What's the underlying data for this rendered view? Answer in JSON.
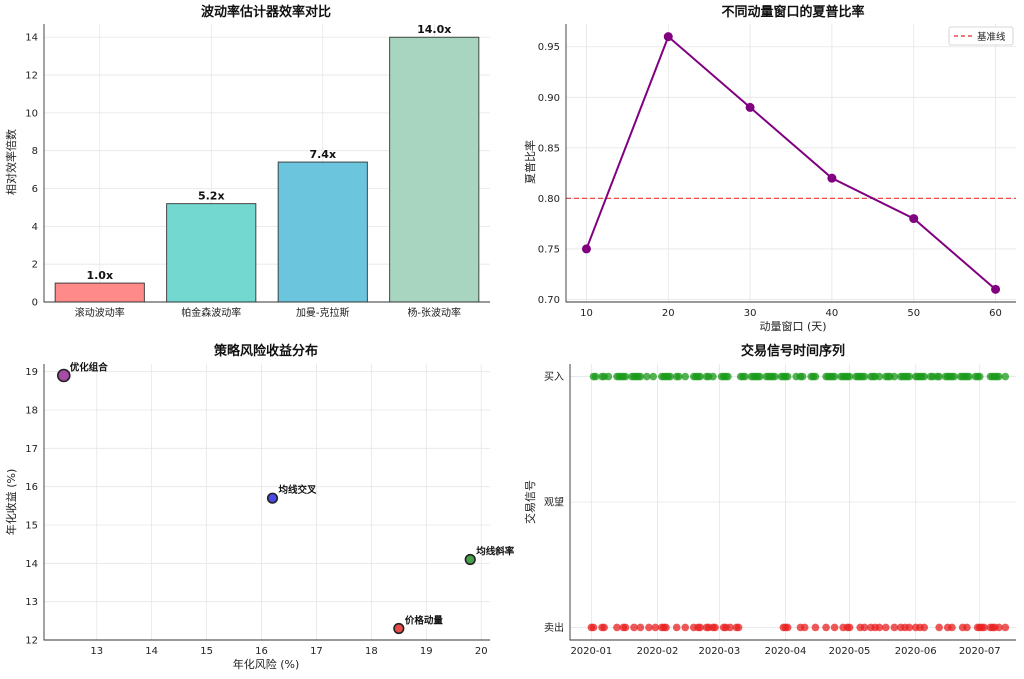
{
  "chart_data": [
    {
      "type": "bar",
      "title": "波动率估计器效率对比",
      "xlabel": "",
      "ylabel": "相对效率倍数",
      "categories": [
        "滚动波动率",
        "帕金森波动率",
        "加曼-克拉斯",
        "杨-张波动率"
      ],
      "values": [
        1.0,
        5.2,
        7.4,
        14.0
      ],
      "value_labels": [
        "1.0x",
        "5.2x",
        "7.4x",
        "14.0x"
      ],
      "colors": [
        "#ff8a8a",
        "#72d8d0",
        "#6bc5dc",
        "#a8d5c0"
      ],
      "ylim": [
        0,
        14.7
      ],
      "yticks": [
        0,
        2,
        4,
        6,
        8,
        10,
        12,
        14
      ],
      "grid": true
    },
    {
      "type": "line",
      "title": "不同动量窗口的夏普比率",
      "xlabel": "动量窗口 (天)",
      "ylabel": "夏普比率",
      "x": [
        10,
        20,
        30,
        40,
        50,
        60
      ],
      "series": [
        {
          "values": [
            0.75,
            0.96,
            0.89,
            0.82,
            0.78,
            0.71
          ],
          "color": "#800080"
        }
      ],
      "reference_line": {
        "name": "基准线",
        "value": 0.8,
        "color": "#e84a4a"
      },
      "xlim": [
        7.5,
        62.5
      ],
      "ylim": [
        0.6975,
        0.9725
      ],
      "xticks": [
        10,
        20,
        30,
        40,
        50,
        60
      ],
      "yticks": [
        0.7,
        0.75,
        0.8,
        0.85,
        0.9,
        0.95
      ],
      "legend": "top-right",
      "grid": true
    },
    {
      "type": "scatter",
      "title": "策略风险收益分布",
      "xlabel": "年化风险 (%)",
      "ylabel": "年化收益 (%)",
      "points": [
        {
          "label": "优化组合",
          "x": 12.4,
          "y": 18.9,
          "color": "#a64ca6"
        },
        {
          "label": "均线交叉",
          "x": 16.2,
          "y": 15.7,
          "color": "#4a4ae8"
        },
        {
          "label": "均线斜率",
          "x": 19.8,
          "y": 14.1,
          "color": "#4aa04a"
        },
        {
          "label": "价格动量",
          "x": 18.5,
          "y": 12.3,
          "color": "#e84a4a"
        }
      ],
      "xlim": [
        12.04,
        20.16
      ],
      "ylim": [
        12.0,
        19.2
      ],
      "xticks": [
        13,
        14,
        15,
        16,
        17,
        18,
        19,
        20
      ],
      "yticks": [
        12,
        13,
        14,
        15,
        16,
        17,
        18,
        19
      ],
      "grid": true
    },
    {
      "type": "scatter",
      "title": "交易信号时间序列",
      "xlabel": "",
      "ylabel": "交易信号",
      "x_axis": "date",
      "xlim": [
        "2019-12-22",
        "2020-07-18"
      ],
      "xticks": [
        "2020-01",
        "2020-02",
        "2020-03",
        "2020-04",
        "2020-05",
        "2020-06",
        "2020-07"
      ],
      "ylim": [
        -1.1,
        1.1
      ],
      "yticks": [
        {
          "value": -1,
          "label": "卖出"
        },
        {
          "value": 0,
          "label": "观望"
        },
        {
          "value": 1,
          "label": "买入"
        }
      ],
      "series": [
        {
          "signal": 1,
          "color": "#1a9a1a",
          "dates": [
            "2020-01-02",
            "2020-01-03",
            "2020-01-06",
            "2020-01-07",
            "2020-01-09",
            "2020-01-13",
            "2020-01-14",
            "2020-01-15",
            "2020-01-16",
            "2020-01-17",
            "2020-01-20",
            "2020-01-21",
            "2020-01-22",
            "2020-01-23",
            "2020-01-24",
            "2020-01-27",
            "2020-01-30",
            "2020-02-03",
            "2020-02-04",
            "2020-02-05",
            "2020-02-06",
            "2020-02-07",
            "2020-02-10",
            "2020-02-11",
            "2020-02-14",
            "2020-02-18",
            "2020-02-19",
            "2020-02-20",
            "2020-02-21",
            "2020-02-24",
            "2020-02-25",
            "2020-02-27",
            "2020-03-02",
            "2020-03-03",
            "2020-03-04",
            "2020-03-05",
            "2020-03-11",
            "2020-03-12",
            "2020-03-13",
            "2020-03-16",
            "2020-03-17",
            "2020-03-18",
            "2020-03-19",
            "2020-03-20",
            "2020-03-23",
            "2020-03-24",
            "2020-03-25",
            "2020-03-26",
            "2020-03-27",
            "2020-03-30",
            "2020-03-31",
            "2020-04-01",
            "2020-04-02",
            "2020-04-06",
            "2020-04-08",
            "2020-04-09",
            "2020-04-13",
            "2020-04-14",
            "2020-04-15",
            "2020-04-20",
            "2020-04-21",
            "2020-04-22",
            "2020-04-23",
            "2020-04-24",
            "2020-04-27",
            "2020-04-28",
            "2020-04-29",
            "2020-04-30",
            "2020-05-01",
            "2020-05-04",
            "2020-05-05",
            "2020-05-06",
            "2020-05-07",
            "2020-05-08",
            "2020-05-11",
            "2020-05-12",
            "2020-05-13",
            "2020-05-15",
            "2020-05-18",
            "2020-05-19",
            "2020-05-20",
            "2020-05-22",
            "2020-05-25",
            "2020-05-26",
            "2020-05-27",
            "2020-05-28",
            "2020-05-29",
            "2020-06-01",
            "2020-06-02",
            "2020-06-03",
            "2020-06-04",
            "2020-06-05",
            "2020-06-08",
            "2020-06-09",
            "2020-06-11",
            "2020-06-12",
            "2020-06-15",
            "2020-06-16",
            "2020-06-17",
            "2020-06-18",
            "2020-06-19",
            "2020-06-22",
            "2020-06-23",
            "2020-06-24",
            "2020-06-25",
            "2020-06-26",
            "2020-06-29",
            "2020-06-30",
            "2020-07-01",
            "2020-07-06",
            "2020-07-07",
            "2020-07-08",
            "2020-07-09",
            "2020-07-10",
            "2020-07-13"
          ]
        },
        {
          "signal": -1,
          "color": "#e82020",
          "dates": [
            "2020-01-01",
            "2020-01-02",
            "2020-01-06",
            "2020-01-07",
            "2020-01-13",
            "2020-01-16",
            "2020-01-17",
            "2020-01-21",
            "2020-01-24",
            "2020-01-28",
            "2020-01-31",
            "2020-02-03",
            "2020-02-04",
            "2020-02-05",
            "2020-02-10",
            "2020-02-14",
            "2020-02-18",
            "2020-02-20",
            "2020-02-21",
            "2020-02-24",
            "2020-02-25",
            "2020-02-27",
            "2020-02-28",
            "2020-03-03",
            "2020-03-04",
            "2020-03-06",
            "2020-03-09",
            "2020-03-10",
            "2020-03-31",
            "2020-04-01",
            "2020-04-02",
            "2020-04-08",
            "2020-04-10",
            "2020-04-15",
            "2020-04-20",
            "2020-04-24",
            "2020-04-28",
            "2020-04-30",
            "2020-05-01",
            "2020-05-06",
            "2020-05-08",
            "2020-05-11",
            "2020-05-13",
            "2020-05-15",
            "2020-05-18",
            "2020-05-22",
            "2020-05-25",
            "2020-05-27",
            "2020-05-29",
            "2020-06-01",
            "2020-06-03",
            "2020-06-05",
            "2020-06-12",
            "2020-06-16",
            "2020-06-18",
            "2020-06-23",
            "2020-06-25",
            "2020-06-30",
            "2020-07-01",
            "2020-07-02",
            "2020-07-03",
            "2020-07-06",
            "2020-07-07",
            "2020-07-08",
            "2020-07-10",
            "2020-07-13"
          ]
        }
      ],
      "grid": true
    }
  ]
}
